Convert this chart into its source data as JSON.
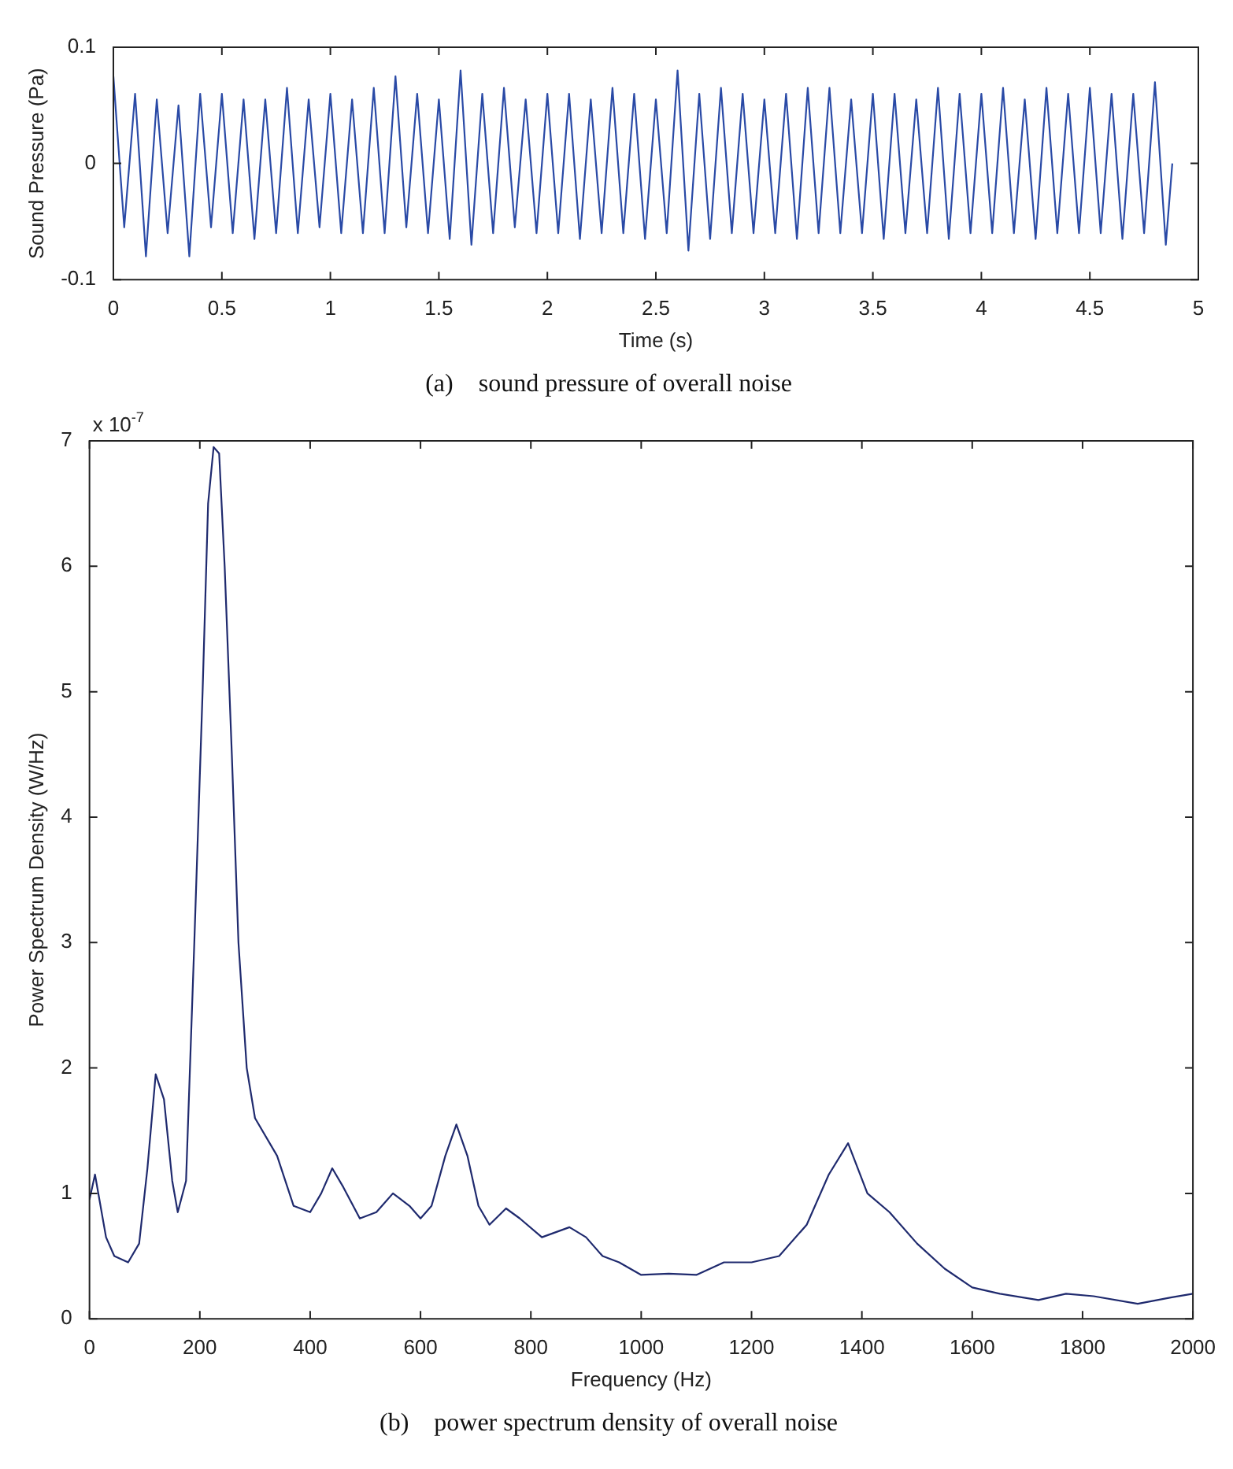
{
  "chart_data": [
    {
      "type": "line",
      "title": "(a)    sound pressure of overall noise",
      "xlabel": "Time (s)",
      "ylabel": "Sound Pressure (Pa)",
      "color": "#2a4aa6",
      "xlim": [
        0,
        5
      ],
      "xticks": [
        0,
        0.5,
        1,
        1.5,
        2,
        2.5,
        3,
        3.5,
        4,
        4.5,
        5
      ],
      "ylim": [
        -0.1,
        0.1
      ],
      "yticks": [
        -0.1,
        0,
        0.1
      ],
      "x": [
        0,
        0.05,
        0.1,
        0.15,
        0.2,
        0.25,
        0.3,
        0.35,
        0.4,
        0.45,
        0.5,
        0.55,
        0.6,
        0.65,
        0.7,
        0.75,
        0.8,
        0.85,
        0.9,
        0.95,
        1,
        1.05,
        1.1,
        1.15,
        1.2,
        1.25,
        1.3,
        1.35,
        1.4,
        1.45,
        1.5,
        1.55,
        1.6,
        1.65,
        1.7,
        1.75,
        1.8,
        1.85,
        1.9,
        1.95,
        2,
        2.05,
        2.1,
        2.15,
        2.2,
        2.25,
        2.3,
        2.35,
        2.4,
        2.45,
        2.5,
        2.55,
        2.6,
        2.65,
        2.7,
        2.75,
        2.8,
        2.85,
        2.9,
        2.95,
        3,
        3.05,
        3.1,
        3.15,
        3.2,
        3.25,
        3.3,
        3.35,
        3.4,
        3.45,
        3.5,
        3.55,
        3.6,
        3.65,
        3.7,
        3.75,
        3.8,
        3.85,
        3.9,
        3.95,
        4,
        4.05,
        4.1,
        4.15,
        4.2,
        4.25,
        4.3,
        4.35,
        4.4,
        4.45,
        4.5,
        4.55,
        4.6,
        4.65,
        4.7,
        4.75,
        4.8,
        4.85,
        4.88
      ],
      "values": [
        0.075,
        -0.055,
        0.06,
        -0.08,
        0.055,
        -0.06,
        0.05,
        -0.08,
        0.06,
        -0.055,
        0.06,
        -0.06,
        0.055,
        -0.065,
        0.055,
        -0.06,
        0.065,
        -0.06,
        0.055,
        -0.055,
        0.06,
        -0.06,
        0.055,
        -0.06,
        0.065,
        -0.06,
        0.075,
        -0.055,
        0.06,
        -0.06,
        0.055,
        -0.065,
        0.08,
        -0.07,
        0.06,
        -0.06,
        0.065,
        -0.055,
        0.055,
        -0.06,
        0.06,
        -0.06,
        0.06,
        -0.065,
        0.055,
        -0.06,
        0.065,
        -0.06,
        0.06,
        -0.065,
        0.055,
        -0.06,
        0.08,
        -0.075,
        0.06,
        -0.065,
        0.065,
        -0.06,
        0.06,
        -0.06,
        0.055,
        -0.06,
        0.06,
        -0.065,
        0.065,
        -0.06,
        0.065,
        -0.06,
        0.055,
        -0.06,
        0.06,
        -0.065,
        0.06,
        -0.06,
        0.055,
        -0.06,
        0.065,
        -0.065,
        0.06,
        -0.06,
        0.06,
        -0.06,
        0.065,
        -0.06,
        0.055,
        -0.065,
        0.065,
        -0.06,
        0.06,
        -0.06,
        0.065,
        -0.06,
        0.06,
        -0.065,
        0.06,
        -0.06,
        0.07,
        -0.07,
        0
      ]
    },
    {
      "type": "line",
      "title": "(b)    power spectrum density of overall noise",
      "xlabel": "Frequency (Hz)",
      "ylabel": "Power Spectrum Density (W/Hz)",
      "annotations": [
        "x 10$^{-7}$"
      ],
      "color": "#1f2a6e",
      "xlim": [
        0,
        2000
      ],
      "xticks": [
        0,
        200,
        400,
        600,
        800,
        1000,
        1200,
        1400,
        1600,
        1800,
        2000
      ],
      "ylim": [
        0,
        7
      ],
      "yticks": [
        0,
        1,
        2,
        3,
        4,
        5,
        6,
        7
      ],
      "x": [
        0,
        10,
        30,
        45,
        70,
        90,
        105,
        120,
        135,
        150,
        160,
        175,
        190,
        205,
        215,
        225,
        235,
        245,
        258,
        270,
        285,
        300,
        340,
        370,
        400,
        420,
        440,
        460,
        490,
        520,
        550,
        580,
        600,
        620,
        645,
        665,
        685,
        705,
        725,
        755,
        780,
        820,
        870,
        900,
        930,
        960,
        1000,
        1050,
        1100,
        1150,
        1200,
        1250,
        1300,
        1340,
        1375,
        1410,
        1450,
        1500,
        1550,
        1600,
        1650,
        1720,
        1770,
        1820,
        1900,
        1960,
        2000
      ],
      "values": [
        0.95,
        1.15,
        0.65,
        0.5,
        0.45,
        0.6,
        1.2,
        1.95,
        1.75,
        1.1,
        0.85,
        1.1,
        3.0,
        5.0,
        6.5,
        6.95,
        6.9,
        6.0,
        4.5,
        3.0,
        2.0,
        1.6,
        1.3,
        0.9,
        0.85,
        1.0,
        1.2,
        1.05,
        0.8,
        0.85,
        1.0,
        0.9,
        0.8,
        0.9,
        1.3,
        1.55,
        1.3,
        0.9,
        0.75,
        0.88,
        0.8,
        0.65,
        0.73,
        0.65,
        0.5,
        0.45,
        0.35,
        0.36,
        0.35,
        0.45,
        0.45,
        0.5,
        0.75,
        1.15,
        1.4,
        1.0,
        0.85,
        0.6,
        0.4,
        0.25,
        0.2,
        0.15,
        0.2,
        0.18,
        0.12,
        0.17,
        0.2
      ]
    }
  ]
}
